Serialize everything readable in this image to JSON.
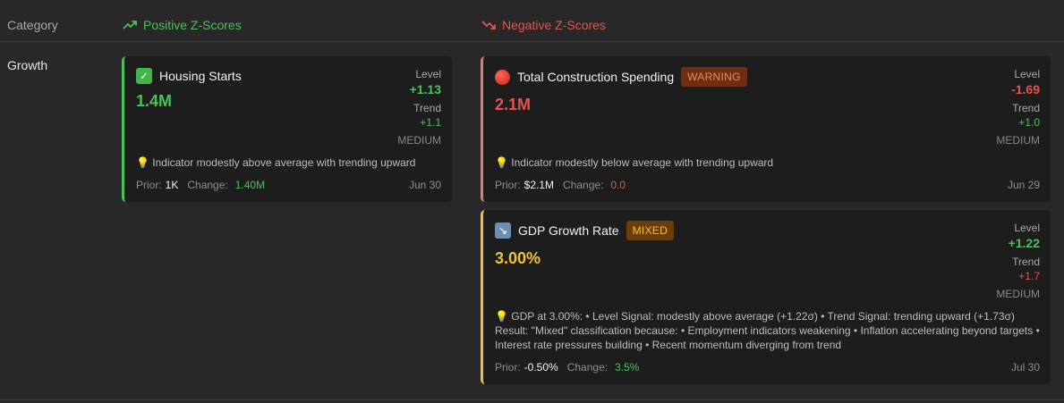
{
  "header": {
    "category_label": "Category",
    "positive_label": "Positive Z-Scores",
    "negative_label": "Negative Z-Scores",
    "positive_color": "#4cc15a",
    "negative_color": "#e2554e"
  },
  "rows": [
    {
      "category": "Growth",
      "positive": [
        {
          "icon": "check-icon",
          "title": "Housing Starts",
          "value": "1.4M",
          "level_label": "Level",
          "level": "+1.13",
          "trend_label": "Trend",
          "trend": "+1.1",
          "strength": "MEDIUM",
          "description": "💡 Indicator modestly above average with trending upward",
          "prior_label": "Prior:",
          "prior": "1K",
          "change_label": "Change:",
          "change": "1.40M",
          "date": "Jun 30"
        }
      ],
      "negative": [
        {
          "icon": "red-circle-icon",
          "title": "Total Construction Spending",
          "badge": "WARNING",
          "value": "2.1M",
          "level_label": "Level",
          "level": "-1.69",
          "trend_label": "Trend",
          "trend": "+1.0",
          "strength": "MEDIUM",
          "description": "💡 Indicator modestly below average with trending upward",
          "prior_label": "Prior:",
          "prior": "$2.1M",
          "change_label": "Change:",
          "change": "0.0",
          "date": "Jun 29"
        },
        {
          "icon": "arrow-down-right-icon",
          "title": "GDP Growth Rate",
          "badge": "MIXED",
          "value": "3.00%",
          "level_label": "Level",
          "level": "+1.22",
          "trend_label": "Trend",
          "trend": "+1.7",
          "strength": "MEDIUM",
          "description": "💡 GDP at 3.00%: • Level Signal: modestly above average (+1.22σ) • Trend Signal: trending upward (+1.73σ) Result: \"Mixed\" classification because: • Employment indicators weakening • Inflation accelerating beyond targets • Interest rate pressures building • Recent momentum diverging from trend",
          "prior_label": "Prior:",
          "prior": "-0.50%",
          "change_label": "Change:",
          "change": "3.5%",
          "date": "Jul 30"
        }
      ]
    }
  ]
}
